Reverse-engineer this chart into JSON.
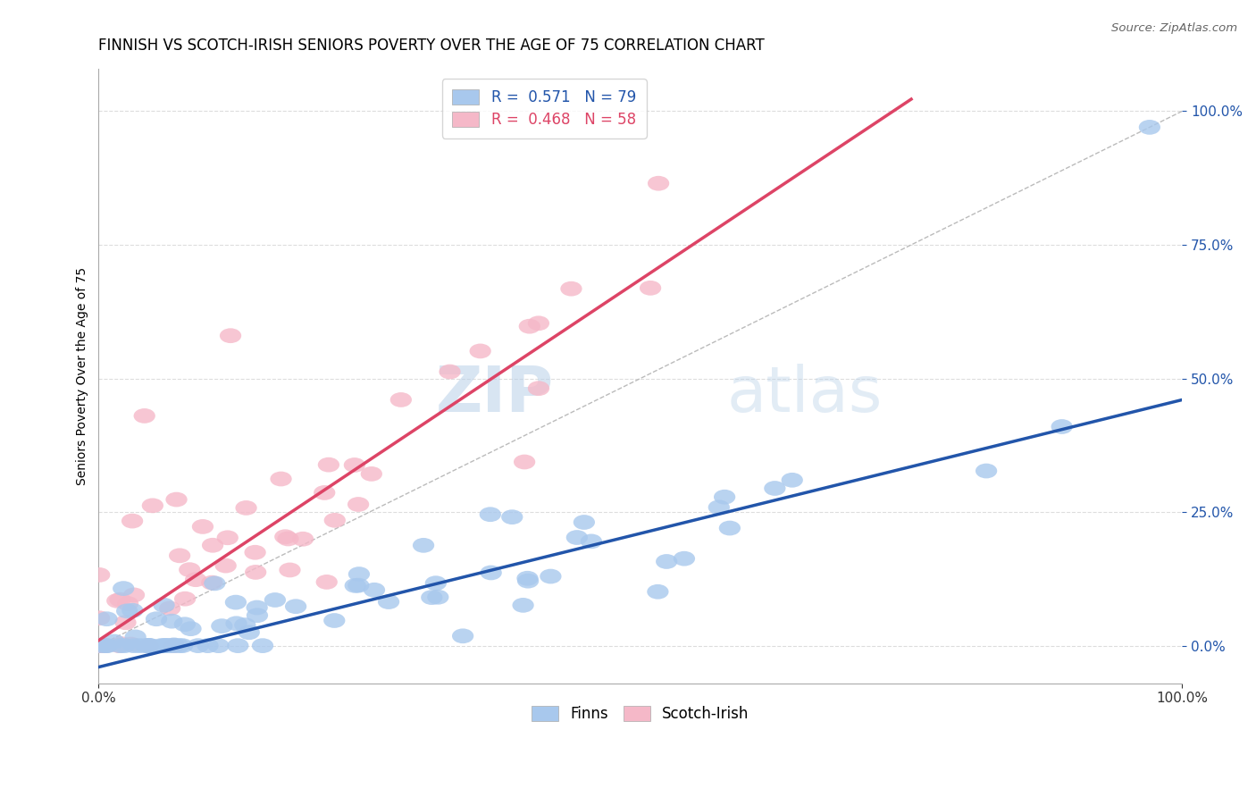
{
  "title": "FINNISH VS SCOTCH-IRISH SENIORS POVERTY OVER THE AGE OF 75 CORRELATION CHART",
  "source": "Source: ZipAtlas.com",
  "ylabel": "Seniors Poverty Over the Age of 75",
  "r_finns": 0.571,
  "n_finns": 79,
  "r_scotch": 0.468,
  "n_scotch": 58,
  "finns_color": "#A8C8ED",
  "scotch_color": "#F5B8C8",
  "finns_line_color": "#2255AA",
  "scotch_line_color": "#DD4466",
  "finns_line_slope": 0.5,
  "finns_line_intercept": -0.04,
  "scotch_line_slope": 1.35,
  "scotch_line_intercept": 0.01,
  "background_color": "#FFFFFF",
  "watermark_zip": "ZIP",
  "watermark_atlas": "atlas",
  "ytick_positions": [
    0.0,
    0.25,
    0.5,
    0.75,
    1.0
  ],
  "ytick_labels": [
    "0.0%",
    "25.0%",
    "50.0%",
    "75.0%",
    "100.0%"
  ],
  "xtick_positions": [
    0.0,
    1.0
  ],
  "xtick_labels": [
    "0.0%",
    "100.0%"
  ],
  "title_fontsize": 12,
  "axis_label_fontsize": 10,
  "tick_fontsize": 11,
  "legend_fontsize": 12
}
